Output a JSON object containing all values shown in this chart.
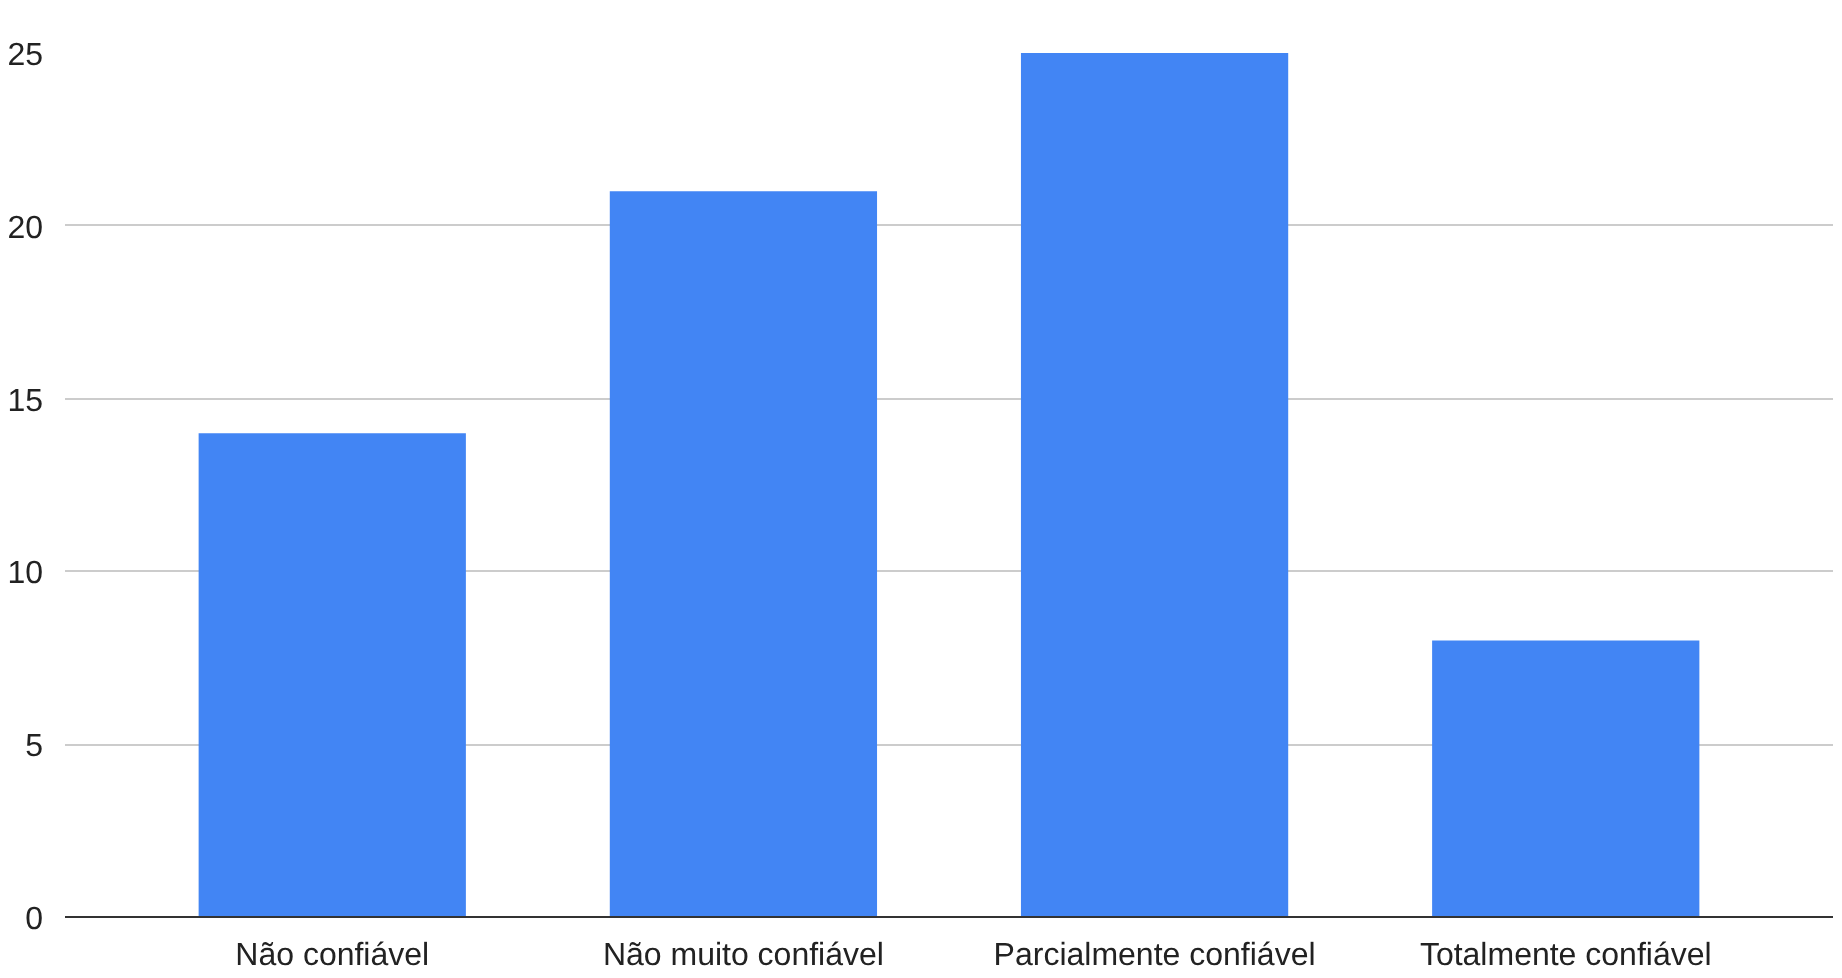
{
  "chart_data": {
    "type": "bar",
    "categories": [
      "Não confiável",
      "Não muito confiável",
      "Parcialmente confiável",
      "Totalmente confiável"
    ],
    "values": [
      14,
      21,
      25,
      8
    ],
    "color": "#4285f4",
    "ylim": [
      0,
      25
    ],
    "yticks": [
      0,
      5,
      10,
      15,
      20,
      25
    ],
    "grid": "y"
  }
}
